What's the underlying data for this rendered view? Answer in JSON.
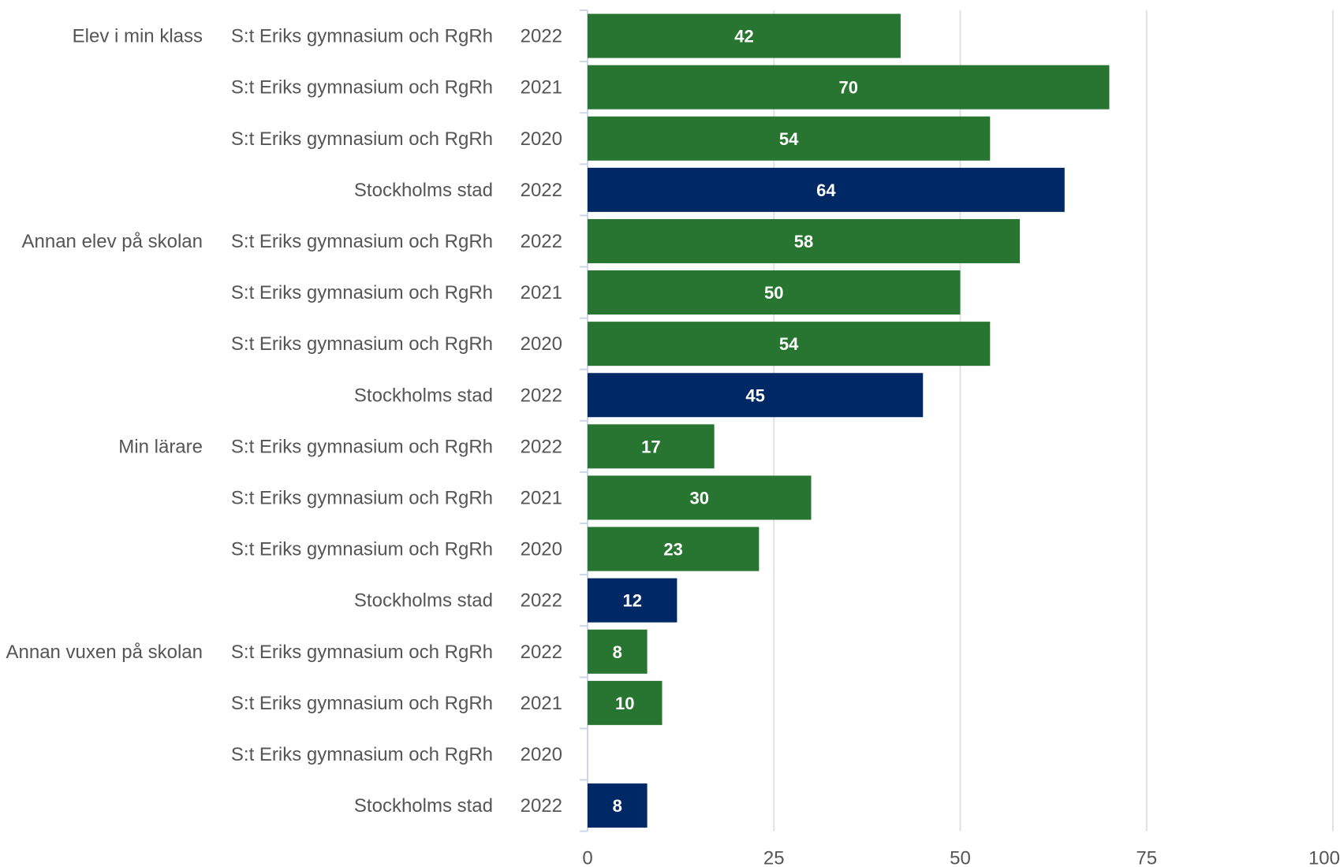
{
  "chart_data": {
    "type": "bar",
    "orientation": "horizontal",
    "xlim": [
      0,
      100
    ],
    "x_ticks": [
      "0",
      "25",
      "50",
      "75",
      "100"
    ],
    "grid": true,
    "legend": "none",
    "colors": {
      "S:t Eriks gymnasium och RgRh": "#277530",
      "Stockholms stad": "#002864"
    },
    "rows": [
      {
        "group": "Elev i min klass",
        "entity": "S:t Eriks gymnasium och RgRh",
        "year": "2022",
        "value": 42
      },
      {
        "group": "",
        "entity": "S:t Eriks gymnasium och RgRh",
        "year": "2021",
        "value": 70
      },
      {
        "group": "",
        "entity": "S:t Eriks gymnasium och RgRh",
        "year": "2020",
        "value": 54
      },
      {
        "group": "",
        "entity": "Stockholms stad",
        "year": "2022",
        "value": 64
      },
      {
        "group": "Annan elev på skolan",
        "entity": "S:t Eriks gymnasium och RgRh",
        "year": "2022",
        "value": 58
      },
      {
        "group": "",
        "entity": "S:t Eriks gymnasium och RgRh",
        "year": "2021",
        "value": 50
      },
      {
        "group": "",
        "entity": "S:t Eriks gymnasium och RgRh",
        "year": "2020",
        "value": 54
      },
      {
        "group": "",
        "entity": "Stockholms stad",
        "year": "2022",
        "value": 45
      },
      {
        "group": "Min lärare",
        "entity": "S:t Eriks gymnasium och RgRh",
        "year": "2022",
        "value": 17
      },
      {
        "group": "",
        "entity": "S:t Eriks gymnasium och RgRh",
        "year": "2021",
        "value": 30
      },
      {
        "group": "",
        "entity": "S:t Eriks gymnasium och RgRh",
        "year": "2020",
        "value": 23
      },
      {
        "group": "",
        "entity": "Stockholms stad",
        "year": "2022",
        "value": 12
      },
      {
        "group": "Annan vuxen på skolan",
        "entity": "S:t Eriks gymnasium och RgRh",
        "year": "2022",
        "value": 8
      },
      {
        "group": "",
        "entity": "S:t Eriks gymnasium och RgRh",
        "year": "2021",
        "value": 10
      },
      {
        "group": "",
        "entity": "S:t Eriks gymnasium och RgRh",
        "year": "2020",
        "value": null
      },
      {
        "group": "",
        "entity": "Stockholms stad",
        "year": "2022",
        "value": 8
      }
    ]
  }
}
